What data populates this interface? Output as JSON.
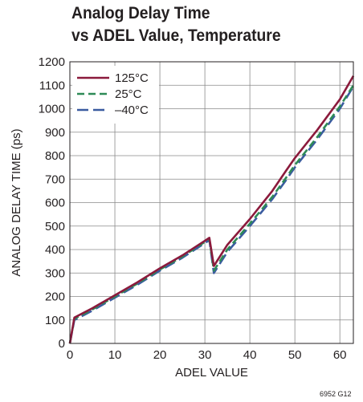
{
  "chart_data": {
    "type": "line",
    "title_lines": [
      "Analog Delay Time",
      "vs ADEL Value, Temperature"
    ],
    "xlabel": "ADEL VALUE",
    "ylabel": "ANALOG DELAY TIME (ps)",
    "xlim": [
      0,
      63
    ],
    "ylim": [
      0,
      1200
    ],
    "xticks": [
      0,
      10,
      20,
      30,
      40,
      50,
      60
    ],
    "yticks": [
      0,
      100,
      200,
      300,
      400,
      500,
      600,
      700,
      800,
      900,
      1000,
      1100,
      1200
    ],
    "grid": true,
    "legend_position": "top-left",
    "series": [
      {
        "name": "125°C",
        "color": "#8b1a3c",
        "dash": "solid",
        "x": [
          0,
          1,
          5,
          10,
          15,
          20,
          25,
          31,
          32,
          35,
          40,
          45,
          48,
          50,
          55,
          60,
          63
        ],
        "y": [
          0,
          110,
          150,
          205,
          260,
          320,
          375,
          450,
          330,
          420,
          530,
          650,
          735,
          790,
          910,
          1040,
          1140
        ]
      },
      {
        "name": "25°C",
        "color": "#2e8b57",
        "dash": "dash",
        "x": [
          0,
          1,
          5,
          10,
          15,
          20,
          25,
          31,
          32,
          35,
          40,
          45,
          48,
          50,
          55,
          60,
          63
        ],
        "y": [
          0,
          105,
          145,
          200,
          255,
          315,
          370,
          445,
          310,
          400,
          510,
          625,
          705,
          760,
          880,
          1010,
          1100
        ]
      },
      {
        "name": "–40°C",
        "color": "#3a5ba0",
        "dash": "longdash",
        "x": [
          0,
          1,
          5,
          10,
          15,
          20,
          25,
          31,
          32,
          35,
          40,
          45,
          48,
          50,
          55,
          60,
          63
        ],
        "y": [
          0,
          100,
          140,
          195,
          250,
          310,
          365,
          440,
          300,
          390,
          500,
          615,
          695,
          750,
          870,
          1000,
          1095
        ]
      }
    ]
  },
  "figure_id": "6952 G12"
}
